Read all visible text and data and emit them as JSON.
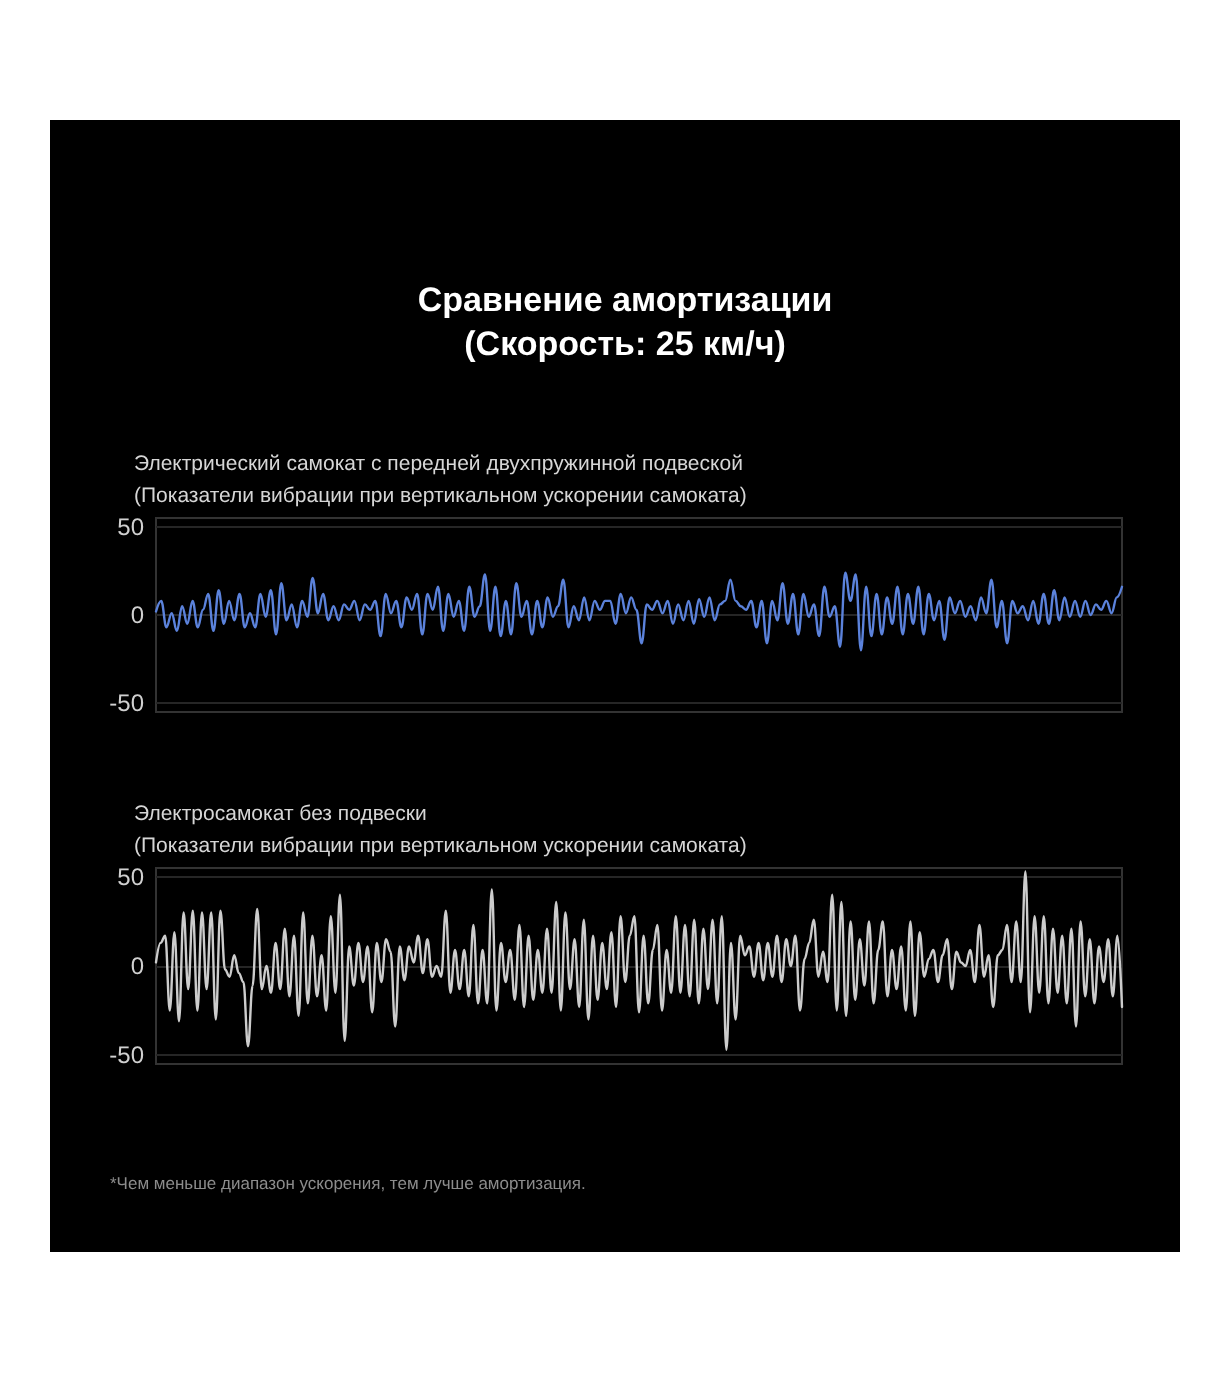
{
  "chart_data": [
    {
      "type": "line",
      "title": "Сравнение амортизации\n(Скорость: 25 км/ч)",
      "subtitle": "Электрический самокат с передней двухпружинной подвеской\n(Показатели вибрации при вертикальном ускорении самоката)",
      "categories": [
        null,
        null,
        null,
        null,
        null,
        null,
        null,
        null,
        null,
        null,
        null,
        null,
        null,
        null,
        null,
        null,
        null,
        null,
        null,
        null,
        null,
        null,
        null,
        null,
        null,
        null,
        null,
        null,
        null,
        null,
        null,
        null,
        null,
        null,
        null,
        null,
        null,
        null,
        null,
        null,
        null,
        null,
        null,
        null,
        null,
        null,
        null,
        null,
        null,
        null,
        null,
        null,
        null,
        null,
        null,
        null,
        null,
        null,
        null,
        null,
        null,
        null,
        null,
        null,
        null,
        null,
        null,
        null,
        null,
        null,
        null,
        null,
        null,
        null,
        null,
        null,
        null,
        null,
        null,
        null,
        null,
        null,
        null,
        null,
        null,
        null,
        null,
        null,
        null,
        null,
        null,
        null,
        null,
        null,
        null,
        null,
        null,
        null,
        null,
        null,
        null,
        null,
        null,
        null,
        null,
        null,
        null,
        null,
        null,
        null,
        null,
        null,
        null,
        null,
        null,
        null,
        null,
        null,
        null,
        null,
        null,
        null,
        null,
        null,
        null,
        null,
        null,
        null,
        null,
        null,
        null,
        null,
        null,
        null,
        null,
        null,
        null,
        null,
        null,
        null,
        null,
        null,
        null,
        null,
        null,
        null,
        null,
        null,
        null,
        null,
        null,
        null,
        null,
        null,
        null,
        null,
        null,
        null,
        null,
        null,
        null,
        null,
        null,
        null,
        null,
        null,
        null,
        null,
        null,
        null,
        null,
        null,
        null,
        null,
        null,
        null,
        null,
        null,
        null,
        null,
        null,
        null,
        null,
        null,
        null,
        null
      ],
      "values": [
        2,
        8,
        -7,
        1,
        -9,
        5,
        -5,
        8,
        -7,
        3,
        12,
        -9,
        14,
        -5,
        8,
        -3,
        12,
        -7,
        1,
        -7,
        12,
        -1,
        14,
        -11,
        18,
        -3,
        6,
        -7,
        8,
        -1,
        21,
        1,
        12,
        -3,
        5,
        -3,
        6,
        3,
        8,
        -3,
        6,
        3,
        8,
        -12,
        12,
        1,
        8,
        -7,
        10,
        3,
        12,
        -11,
        12,
        3,
        16,
        -9,
        12,
        -1,
        8,
        -9,
        16,
        -1,
        5,
        23,
        -9,
        16,
        -12,
        8,
        -11,
        18,
        -1,
        8,
        -11,
        8,
        -7,
        10,
        -1,
        5,
        20,
        -7,
        5,
        -3,
        10,
        -3,
        8,
        3,
        8,
        8,
        -5,
        12,
        1,
        10,
        3,
        -16,
        6,
        3,
        8,
        1,
        8,
        -5,
        6,
        -3,
        8,
        -5,
        9,
        -1,
        10,
        -3,
        6,
        8,
        20,
        8,
        5,
        3,
        8,
        -7,
        8,
        -16,
        8,
        -3,
        18,
        -5,
        12,
        -11,
        12,
        -1,
        6,
        -12,
        16,
        -1,
        5,
        -18,
        24,
        8,
        23,
        -20,
        16,
        -12,
        12,
        -11,
        10,
        -5,
        16,
        -11,
        12,
        -5,
        16,
        -11,
        12,
        -3,
        8,
        -14,
        10,
        1,
        8,
        -1,
        5,
        -3,
        10,
        1,
        20,
        -7,
        8,
        -16,
        8,
        1,
        5,
        -3,
        8,
        -5,
        12,
        -5,
        14,
        -3,
        10,
        -1,
        8,
        -1,
        8,
        0,
        6,
        3,
        8,
        1,
        10,
        16
      ],
      "color": "#5b82db",
      "ylim": [
        -55,
        55
      ],
      "yticks": [
        -50,
        0,
        50
      ],
      "grid": "y",
      "tick_labels": "y"
    },
    {
      "type": "line",
      "subtitle": "Электросамокат без подвески\n(Показатели вибрации при вертикальном ускорении самоката)",
      "categories": [
        null,
        null,
        null,
        null,
        null,
        null,
        null,
        null,
        null,
        null,
        null,
        null,
        null,
        null,
        null,
        null,
        null,
        null,
        null,
        null,
        null,
        null,
        null,
        null,
        null,
        null,
        null,
        null,
        null,
        null,
        null,
        null,
        null,
        null,
        null,
        null,
        null,
        null,
        null,
        null,
        null,
        null,
        null,
        null,
        null,
        null,
        null,
        null,
        null,
        null,
        null,
        null,
        null,
        null,
        null,
        null,
        null,
        null,
        null,
        null,
        null,
        null,
        null,
        null,
        null,
        null,
        null,
        null,
        null,
        null,
        null,
        null,
        null,
        null,
        null,
        null,
        null,
        null,
        null,
        null,
        null,
        null,
        null,
        null,
        null,
        null,
        null,
        null,
        null,
        null,
        null,
        null,
        null,
        null,
        null,
        null,
        null,
        null,
        null,
        null,
        null,
        null,
        null,
        null,
        null,
        null,
        null,
        null,
        null,
        null,
        null,
        null,
        null,
        null,
        null,
        null,
        null,
        null,
        null,
        null,
        null,
        null,
        null,
        null,
        null,
        null,
        null,
        null,
        null,
        null,
        null,
        null,
        null,
        null,
        null,
        null,
        null,
        null,
        null,
        null,
        null,
        null,
        null,
        null,
        null,
        null,
        null,
        null,
        null,
        null,
        null,
        null,
        null,
        null,
        null,
        null,
        null,
        null,
        null,
        null,
        null,
        null,
        null,
        null,
        null,
        null,
        null,
        null,
        null,
        null,
        null,
        null,
        null,
        null,
        null,
        null,
        null,
        null,
        null,
        null,
        null,
        null,
        null,
        null,
        null,
        null,
        null,
        null,
        null,
        null,
        null,
        null,
        null,
        null,
        null,
        null,
        null,
        null,
        null,
        null,
        null,
        null,
        null,
        null,
        null,
        null,
        null,
        null,
        null,
        null,
        null
      ],
      "values": [
        2,
        13,
        17,
        -25,
        19,
        -31,
        30,
        -13,
        31,
        -25,
        30,
        -13,
        30,
        -30,
        31,
        -2,
        -6,
        6,
        -4,
        -9,
        -45,
        -11,
        32,
        -13,
        0,
        -15,
        13,
        -13,
        21,
        -17,
        17,
        -28,
        30,
        -21,
        17,
        -17,
        6,
        -25,
        28,
        -15,
        40,
        -42,
        11,
        -11,
        13,
        -9,
        11,
        -26,
        13,
        -9,
        15,
        8,
        -34,
        11,
        -8,
        11,
        2,
        17,
        -4,
        15,
        -6,
        0,
        -6,
        31,
        -15,
        9,
        -13,
        9,
        -17,
        23,
        -21,
        9,
        -21,
        43,
        -25,
        13,
        -9,
        9,
        -19,
        23,
        -23,
        17,
        -19,
        9,
        -15,
        21,
        -15,
        36,
        -25,
        30,
        -13,
        15,
        -23,
        26,
        -30,
        17,
        -19,
        13,
        -13,
        19,
        -23,
        28,
        -9,
        17,
        28,
        -26,
        17,
        -21,
        9,
        23,
        -25,
        9,
        -15,
        28,
        -15,
        23,
        -17,
        26,
        -21,
        21,
        -13,
        26,
        -21,
        28,
        -47,
        13,
        -30,
        17,
        6,
        11,
        -6,
        13,
        -8,
        13,
        -6,
        17,
        -9,
        15,
        0,
        17,
        -25,
        4,
        13,
        26,
        -6,
        8,
        -9,
        40,
        -25,
        36,
        -28,
        25,
        -19,
        15,
        -11,
        25,
        -21,
        9,
        25,
        -17,
        9,
        -13,
        11,
        -25,
        25,
        -28,
        19,
        -6,
        4,
        9,
        -9,
        6,
        15,
        -13,
        8,
        2,
        0,
        9,
        -9,
        23,
        -6,
        6,
        -23,
        6,
        9,
        23,
        -9,
        25,
        -9,
        53,
        -26,
        28,
        -15,
        28,
        -21,
        21,
        -15,
        17,
        -21,
        21,
        -34,
        25,
        -17,
        15,
        -21,
        11,
        -9,
        15,
        -17,
        17,
        -23
      ],
      "color": "#cccccc",
      "ylim": [
        -55,
        55
      ],
      "yticks": [
        -50,
        0,
        50
      ],
      "grid": "y",
      "tick_labels": "y",
      "annotations": [
        "*Чем меньше диапазон ускорения, тем лучше амортизация."
      ]
    }
  ]
}
